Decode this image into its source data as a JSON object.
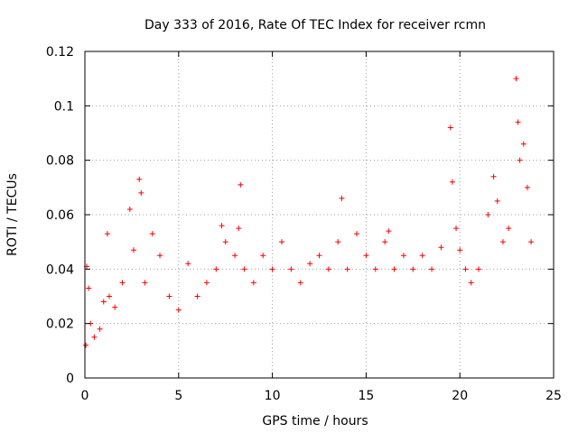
{
  "chart_data": {
    "type": "scatter",
    "title": "Day 333 of 2016, Rate Of TEC Index for receiver rcmn",
    "xlabel": "GPS time / hours",
    "ylabel": "ROTI / TECUs",
    "xlim": [
      0,
      25
    ],
    "ylim": [
      0,
      0.12
    ],
    "x_ticks": [
      "0",
      "5",
      "10",
      "15",
      "20",
      "25"
    ],
    "y_ticks": [
      "0",
      "0.02",
      "0.04",
      "0.06",
      "0.08",
      "0.1",
      "0.12"
    ],
    "grid": true,
    "marker": "+",
    "color": "#ff0000",
    "series": [
      {
        "x": [
          0.05,
          0.1,
          0.2,
          0.3,
          0.5,
          0.8,
          1.0,
          1.2,
          1.3,
          1.6,
          2.0,
          2.4,
          2.6,
          2.9,
          3.0,
          3.2,
          3.6,
          4.0,
          4.5,
          5.0,
          5.5,
          6.0,
          6.5,
          7.0,
          7.3,
          7.5,
          8.0,
          8.2,
          8.3,
          8.5,
          9.0,
          9.5,
          10.0,
          10.5,
          11.0,
          11.5,
          12.0,
          12.5,
          13.0,
          13.5,
          13.7,
          14.0,
          14.5,
          15.0,
          15.5,
          16.0,
          16.2,
          16.5,
          17.0,
          17.5,
          18.0,
          18.5,
          19.0,
          19.5,
          19.6,
          19.8,
          20.0,
          20.3,
          20.6,
          21.0,
          21.5,
          21.8,
          22.0,
          22.3,
          22.6,
          23.0,
          23.1,
          23.2,
          23.4,
          23.6,
          23.8
        ],
        "y": [
          0.012,
          0.041,
          0.033,
          0.02,
          0.015,
          0.018,
          0.028,
          0.053,
          0.03,
          0.026,
          0.035,
          0.062,
          0.047,
          0.073,
          0.068,
          0.035,
          0.053,
          0.045,
          0.03,
          0.025,
          0.042,
          0.03,
          0.035,
          0.04,
          0.056,
          0.05,
          0.045,
          0.055,
          0.071,
          0.04,
          0.035,
          0.045,
          0.04,
          0.05,
          0.04,
          0.035,
          0.042,
          0.045,
          0.04,
          0.05,
          0.066,
          0.04,
          0.053,
          0.045,
          0.04,
          0.05,
          0.054,
          0.04,
          0.045,
          0.04,
          0.045,
          0.04,
          0.048,
          0.092,
          0.072,
          0.055,
          0.047,
          0.04,
          0.035,
          0.04,
          0.06,
          0.074,
          0.065,
          0.05,
          0.055,
          0.11,
          0.094,
          0.08,
          0.086,
          0.07,
          0.05
        ]
      }
    ]
  }
}
